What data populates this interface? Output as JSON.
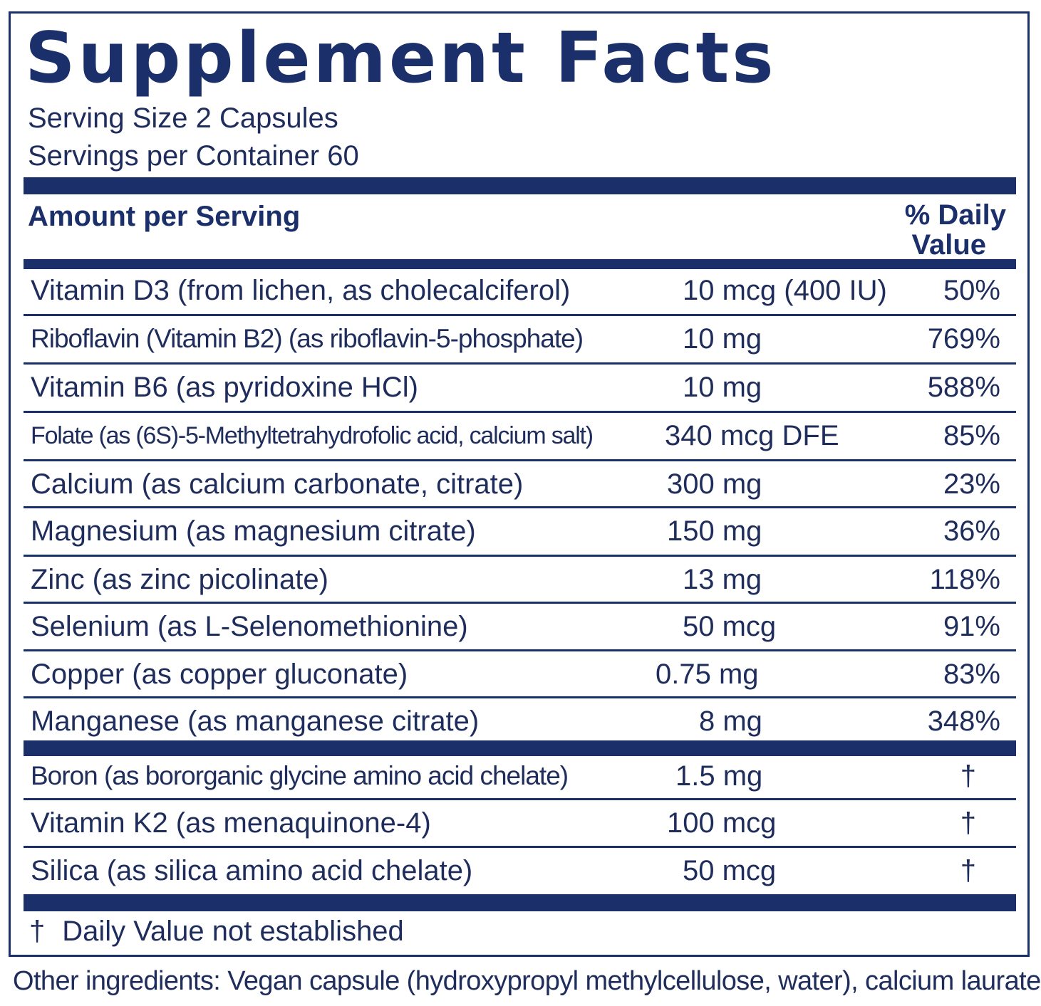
{
  "title": "Supplement Facts",
  "serving_size": "Serving Size 2 Capsules",
  "servings_per_container": "Servings per Container 60",
  "header": {
    "amount_per_serving": "Amount per Serving",
    "daily_value_line1": "% Daily",
    "daily_value_line2": "Value"
  },
  "rows": [
    {
      "name": "Vitamin D3 (from lichen, as cholecalciferol)",
      "amount": "10 mcg (400 IU)",
      "dv": "50%"
    },
    {
      "name": "Riboflavin (Vitamin B2) (as riboflavin-5-phosphate)",
      "amount": "10 mg",
      "dv": "769%"
    },
    {
      "name": "Vitamin B6 (as pyridoxine HCl)",
      "amount": "10 mg",
      "dv": "588%"
    },
    {
      "name": "Folate (as (6S)-5-Methyltetrahydrofolic acid, calcium salt)",
      "amount": "340 mcg DFE",
      "dv": "85%"
    },
    {
      "name": "Calcium (as calcium carbonate, citrate)",
      "amount": "300 mg",
      "dv": "23%"
    },
    {
      "name": "Magnesium (as magnesium citrate)",
      "amount": "150 mg",
      "dv": "36%"
    },
    {
      "name": "Zinc (as zinc picolinate)",
      "amount": "13 mg",
      "dv": "118%"
    },
    {
      "name": "Selenium (as L-Selenomethionine)",
      "amount": "50 mcg",
      "dv": "91%"
    },
    {
      "name": "Copper (as copper gluconate)",
      "amount": "0.75 mg",
      "dv": "83%"
    },
    {
      "name": "Manganese (as manganese citrate)",
      "amount": "8 mg",
      "dv": "348%"
    },
    {
      "name": "Boron (as bororganic glycine amino acid chelate)",
      "amount": "1.5 mg",
      "dv": "†"
    },
    {
      "name": "Vitamin K2 (as menaquinone-4)",
      "amount": "100 mcg",
      "dv": "†"
    },
    {
      "name": "Silica (as silica amino acid chelate)",
      "amount": "50 mcg",
      "dv": "†"
    }
  ],
  "footnote": {
    "symbol": "†",
    "text": "Daily Value not established"
  },
  "other_ingredients": "Other ingredients: Vegan capsule (hydroxypropyl methylcellulose, water), calcium laurate.",
  "colors": {
    "label_navy": "#1b2f6b",
    "text": "#1f2d5c"
  }
}
